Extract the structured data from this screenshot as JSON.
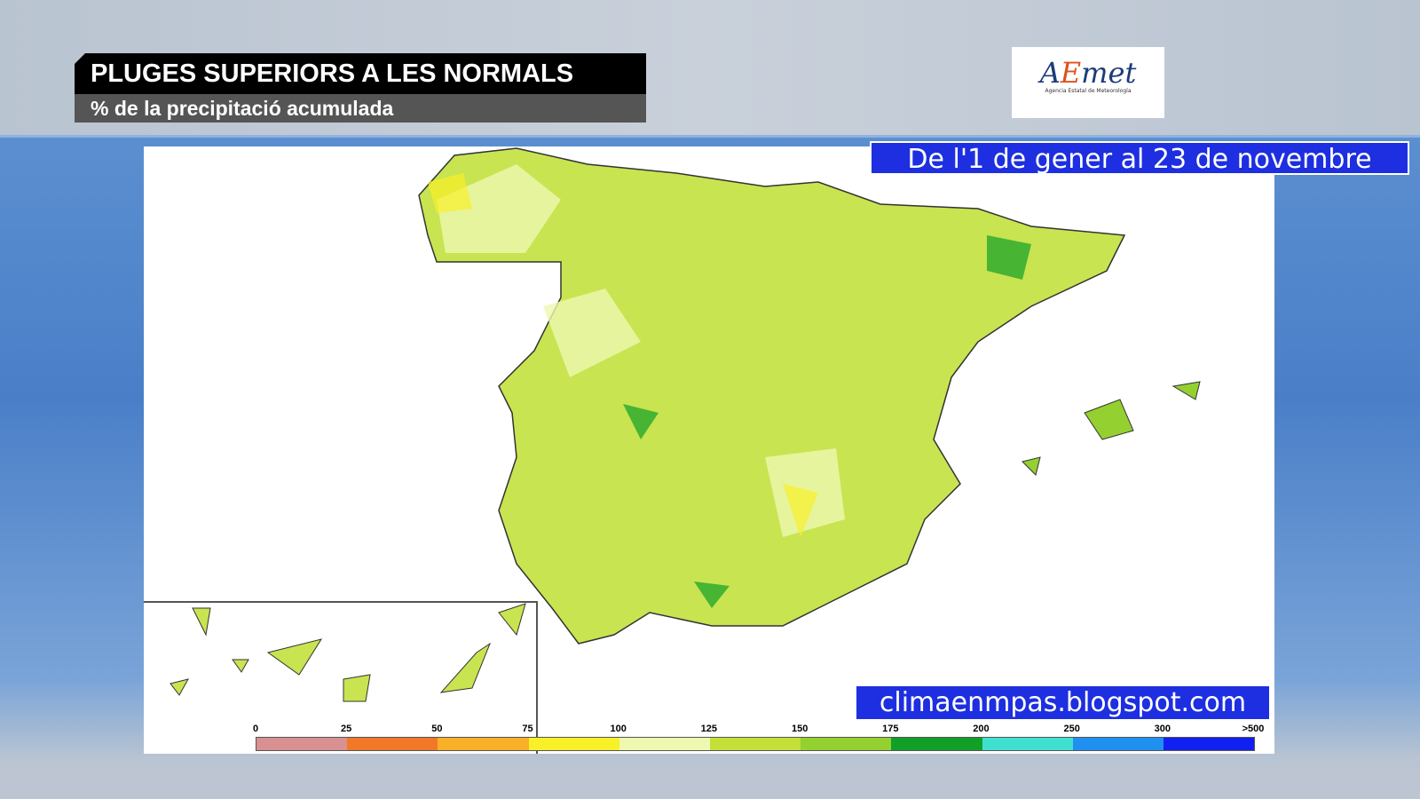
{
  "header": {
    "title": "PLUGES SUPERIORS A LES NORMALS",
    "subtitle": "% de la precipitació acumulada"
  },
  "logo": {
    "name": "AEmet",
    "tagline": "Agencia Estatal de Meteorología"
  },
  "date_range": "De l'1 de gener al 23 de novembre",
  "source": "climaenmpas.blogspot.com",
  "legend": {
    "labels": [
      "0",
      "25",
      "50",
      "75",
      "100",
      "125",
      "150",
      "175",
      "200",
      "250",
      "300",
      ">500"
    ],
    "colors": [
      "#d99090",
      "#f07828",
      "#f8b028",
      "#f8f028",
      "#eef8b0",
      "#c4e038",
      "#94d030",
      "#10a028",
      "#40e0d0",
      "#2090f0",
      "#1020f0"
    ]
  }
}
